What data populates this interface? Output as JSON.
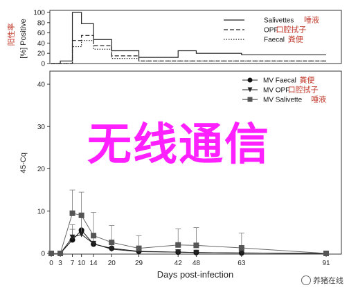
{
  "chart_data": [
    {
      "type": "step",
      "ylabel": "[%] Positive",
      "ylabel_annotation": "阳性率",
      "yticks": [
        0,
        20,
        40,
        60,
        80,
        100
      ],
      "ylim": [
        0,
        100
      ],
      "xlim": [
        0,
        91
      ],
      "legend_position": "top-right",
      "series": [
        {
          "name": "Salivettes",
          "annotation": "唾液",
          "style": "solid",
          "x": [
            0,
            3,
            7,
            10,
            14,
            20,
            29,
            42,
            48,
            63,
            91
          ],
          "values": [
            0,
            5,
            100,
            78,
            47,
            25,
            12,
            25,
            20,
            17,
            13
          ]
        },
        {
          "name": "OPF",
          "annotation": "口腔拭子",
          "style": "dashed",
          "x": [
            0,
            3,
            7,
            10,
            14,
            20,
            29,
            42,
            48,
            63,
            91
          ],
          "values": [
            0,
            0,
            45,
            55,
            35,
            15,
            5,
            5,
            5,
            5,
            0
          ]
        },
        {
          "name": "Faecal",
          "annotation": "粪便",
          "style": "dotted",
          "x": [
            0,
            3,
            7,
            10,
            14,
            20,
            29,
            42,
            48,
            63,
            91
          ],
          "values": [
            0,
            0,
            33,
            45,
            28,
            10,
            5,
            5,
            5,
            5,
            0
          ]
        }
      ]
    },
    {
      "type": "line",
      "ylabel": "45-Cq",
      "xlabel": "Days post-infection",
      "xticks": [
        0,
        3,
        7,
        10,
        14,
        20,
        29,
        42,
        48,
        63,
        91
      ],
      "yticks": [
        0,
        10,
        20,
        30,
        40
      ],
      "ylim": [
        0,
        45
      ],
      "xlim": [
        0,
        91
      ],
      "legend_position": "top-right",
      "series": [
        {
          "name": "MV Faecal",
          "annotation": "粪便",
          "marker": "circle",
          "x": [
            0,
            3,
            7,
            10,
            14,
            20,
            29,
            42,
            48,
            63,
            91
          ],
          "values": [
            0,
            0,
            3.2,
            5.5,
            2.2,
            1.2,
            0.5,
            0.3,
            0.2,
            0.1,
            0
          ],
          "error": [
            0,
            0,
            2.5,
            4,
            2,
            1.5,
            0.8,
            0.5,
            0.4,
            0.3,
            0
          ]
        },
        {
          "name": "MV OPF",
          "annotation": "口腔拭子",
          "marker": "triangle-down",
          "x": [
            0,
            3,
            7,
            10,
            14,
            20,
            29,
            42,
            48,
            63,
            91
          ],
          "values": [
            0,
            0,
            3.8,
            4.5,
            2.3,
            1.0,
            0.4,
            0.3,
            0.2,
            0.1,
            0
          ],
          "error": [
            0,
            0,
            3,
            4,
            2.5,
            1.5,
            0.8,
            0.5,
            0.5,
            0.3,
            0
          ]
        },
        {
          "name": "MV Salivette",
          "annotation": "唾液",
          "marker": "square",
          "x": [
            0,
            3,
            7,
            10,
            14,
            20,
            29,
            42,
            48,
            63,
            91
          ],
          "values": [
            0,
            0,
            9.5,
            9.0,
            4.2,
            2.6,
            1.2,
            2.0,
            1.9,
            1.3,
            0
          ],
          "error": [
            0,
            0,
            5.5,
            5.5,
            5.5,
            4,
            3,
            3.8,
            4.2,
            3.5,
            0
          ]
        }
      ]
    }
  ],
  "overlay_text": "无线通信",
  "watermark": "养猪在线"
}
